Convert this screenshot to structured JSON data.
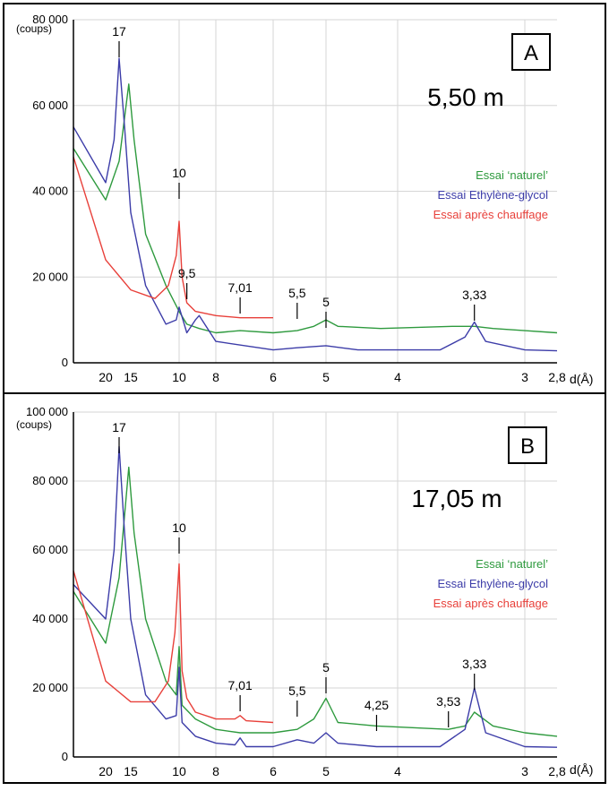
{
  "panels": [
    {
      "label": "A",
      "depth": "5,50 m",
      "y_unit": "(coups)",
      "x_unit": "d(Å)",
      "legend": [
        "Essai ‘naturel’",
        "Essai Ethylène-glycol",
        "Essai après chauffage"
      ],
      "y_ticks": [
        "0",
        "20 000",
        "40 000",
        "60 000",
        "80 000"
      ],
      "x_ticks": [
        "20",
        "15",
        "10",
        "8",
        "6",
        "5",
        "4",
        "3",
        "2,8"
      ],
      "peak_labels": [
        "17",
        "10",
        "9,5",
        "7,01",
        "5,5",
        "5",
        "3,33"
      ]
    },
    {
      "label": "B",
      "depth": "17,05 m",
      "y_unit": "(coups)",
      "x_unit": "d(Å)",
      "legend": [
        "Essai ‘naturel’",
        "Essai Ethylène-glycol",
        "Essai après chauffage"
      ],
      "y_ticks": [
        "0",
        "20 000",
        "40 000",
        "60 000",
        "80 000",
        "100 000"
      ],
      "x_ticks": [
        "20",
        "15",
        "10",
        "8",
        "6",
        "5",
        "4",
        "3",
        "2,8"
      ],
      "peak_labels": [
        "17",
        "10",
        "7,01",
        "5,5",
        "5",
        "4,25",
        "3,53",
        "3,33"
      ]
    }
  ],
  "colors": {
    "natural": "#2e9a3e",
    "glycol": "#3c3ca8",
    "heated": "#e8403a",
    "axis": "#000000",
    "grid": "#d6d6d6"
  },
  "chart_data": [
    {
      "type": "line",
      "xlabel": "d(Å)",
      "ylabel": "(coups)",
      "ylim": [
        0,
        80000
      ],
      "x_ticks": [
        20,
        15,
        10,
        8,
        6,
        5,
        4,
        3,
        2.8
      ],
      "series": [
        {
          "name": "Essai ‘naturel’",
          "x": [
            28,
            20,
            17,
            15.3,
            14.5,
            13,
            11,
            10,
            9.5,
            8.8,
            8,
            7.01,
            6,
            5.5,
            5.2,
            5,
            4.8,
            4.2,
            3.5,
            3.33,
            3.2,
            3,
            2.8
          ],
          "y": [
            50000,
            38000,
            47000,
            65000,
            52000,
            30000,
            18000,
            12000,
            9000,
            8000,
            7000,
            7500,
            7000,
            7500,
            8500,
            10000,
            8500,
            8000,
            8500,
            8500,
            8000,
            7500,
            7000
          ]
        },
        {
          "name": "Essai Ethylène-glycol",
          "x": [
            28,
            20,
            18,
            17,
            16,
            15,
            13,
            11,
            10.2,
            10,
            9.5,
            9,
            8.8,
            8,
            6,
            5.5,
            5,
            4.5,
            3.6,
            3.4,
            3.33,
            3.25,
            3,
            2.8
          ],
          "y": [
            55000,
            42000,
            52000,
            71000,
            55000,
            35000,
            18000,
            9000,
            10000,
            13000,
            7000,
            10000,
            11000,
            5000,
            3000,
            3500,
            4000,
            3000,
            3000,
            6000,
            9500,
            5000,
            3000,
            2800
          ]
        },
        {
          "name": "Essai après chauffage",
          "x": [
            28,
            20,
            15,
            12,
            10.8,
            10.2,
            10,
            9.8,
            9.5,
            9,
            8,
            7.01,
            6
          ],
          "y": [
            48000,
            24000,
            17000,
            15000,
            18000,
            25000,
            33000,
            20000,
            14000,
            12000,
            11000,
            10500,
            10500
          ]
        }
      ]
    },
    {
      "type": "line",
      "xlabel": "d(Å)",
      "ylabel": "(coups)",
      "ylim": [
        0,
        100000
      ],
      "x_ticks": [
        20,
        15,
        10,
        8,
        6,
        5,
        4,
        3,
        2.8
      ],
      "series": [
        {
          "name": "Essai ‘naturel’",
          "x": [
            28,
            20,
            17,
            15.3,
            14.5,
            13,
            11,
            10.2,
            10,
            9.8,
            9,
            8,
            7.01,
            6,
            5.5,
            5.2,
            5,
            4.8,
            4.25,
            3.53,
            3.4,
            3.33,
            3.2,
            3,
            2.8
          ],
          "y": [
            48000,
            33000,
            52000,
            84000,
            65000,
            40000,
            22000,
            18000,
            32000,
            15000,
            11000,
            8000,
            7000,
            7000,
            8000,
            11000,
            17000,
            10000,
            9000,
            8000,
            9000,
            13000,
            9000,
            7000,
            6000
          ]
        },
        {
          "name": "Essai Ethylène-glycol",
          "x": [
            28,
            20,
            18,
            17,
            16,
            15,
            13,
            11,
            10.2,
            10,
            9.8,
            9,
            8,
            7.2,
            7.01,
            6.8,
            6,
            5.5,
            5.2,
            5,
            4.8,
            4.25,
            3.6,
            3.4,
            3.33,
            3.25,
            3,
            2.8
          ],
          "y": [
            50000,
            40000,
            60000,
            90000,
            65000,
            40000,
            18000,
            11000,
            12000,
            26000,
            10000,
            6000,
            4000,
            3500,
            5500,
            3000,
            3000,
            5000,
            4000,
            7000,
            4000,
            3000,
            3000,
            8000,
            20000,
            7000,
            3000,
            2800
          ]
        },
        {
          "name": "Essai après chauffage",
          "x": [
            28,
            20,
            15,
            12,
            10.8,
            10.3,
            10,
            9.8,
            9.5,
            9,
            8,
            7.2,
            7.01,
            6.8,
            6
          ],
          "y": [
            54000,
            22000,
            16000,
            16000,
            22000,
            36000,
            56000,
            25000,
            17000,
            13000,
            11000,
            11000,
            12000,
            10500,
            10000
          ]
        }
      ]
    }
  ]
}
